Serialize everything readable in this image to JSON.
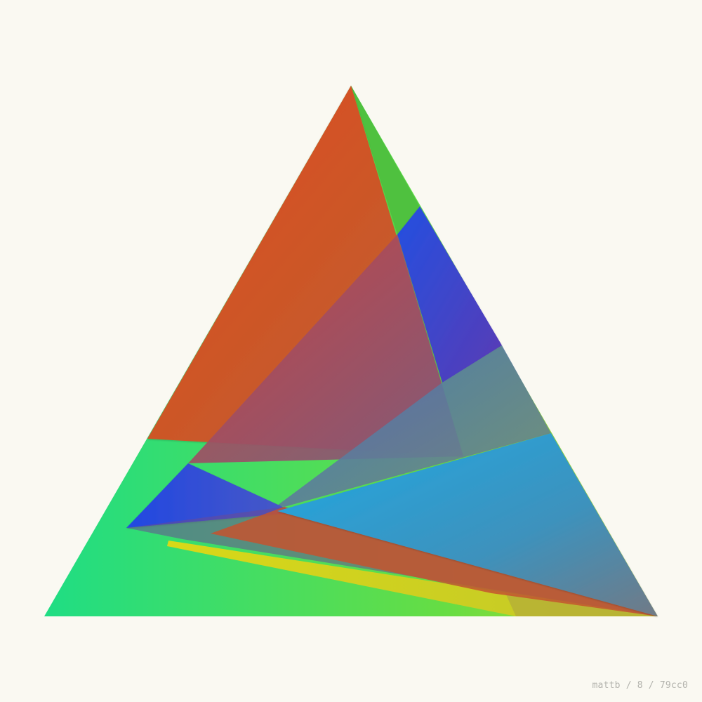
{
  "signature": "mattb / 8 / 79cc0",
  "colors": {
    "background": "#faf9f2",
    "green": "#22dd7a",
    "lime": "#7ae23a",
    "yellow": "#d8d81c",
    "red": "#e0461f",
    "orange_red": "#d24a25",
    "leaf_green": "#4fc13f",
    "blue": "#2449e0",
    "sky_blue": "#1fa7e2",
    "slate": "#6a7888",
    "violet": "#5b3bbd",
    "rose": "#b04a57",
    "signature_text": "#b3b3ad"
  }
}
